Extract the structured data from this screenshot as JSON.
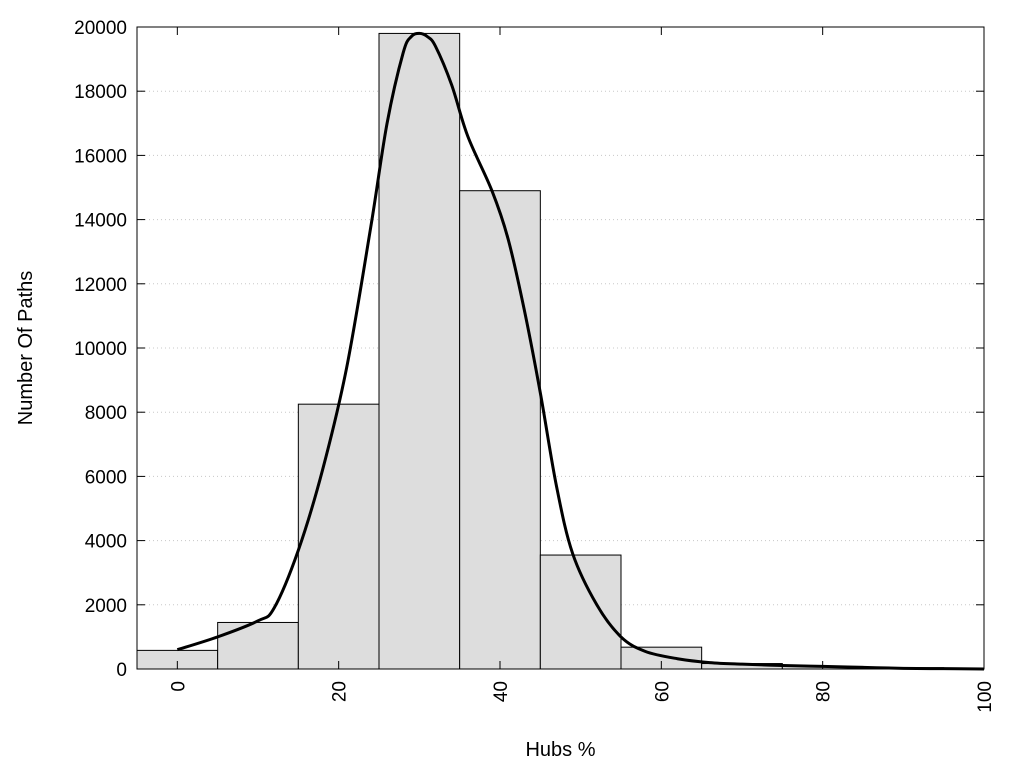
{
  "chart_data": {
    "type": "bar",
    "xlabel": "Hubs %",
    "ylabel": "Number Of Paths",
    "xlim": [
      -5,
      100
    ],
    "ylim": [
      0,
      20000
    ],
    "x_ticks": [
      0,
      20,
      40,
      60,
      80,
      100
    ],
    "x_tick_labels": [
      "0",
      "20",
      "40",
      "60",
      "80",
      "100"
    ],
    "y_ticks": [
      0,
      2000,
      4000,
      6000,
      8000,
      10000,
      12000,
      14000,
      16000,
      18000,
      20000
    ],
    "y_tick_labels": [
      "0",
      "2000",
      "4000",
      "6000",
      "8000",
      "10000",
      "12000",
      "14000",
      "16000",
      "18000",
      "20000"
    ],
    "grid": "horizontal dotted",
    "bar_width": 10,
    "bins": [
      0,
      10,
      20,
      30,
      40,
      50,
      60,
      70,
      80,
      90
    ],
    "values": [
      580,
      1450,
      8250,
      19800,
      14900,
      3550,
      680,
      170,
      80,
      40
    ],
    "bar_color": "#dddddd",
    "curve": {
      "x": [
        0,
        5,
        10,
        12,
        15,
        18,
        21,
        24,
        26,
        28,
        29,
        30,
        31,
        32,
        34,
        36,
        39,
        41,
        43,
        45,
        47,
        49,
        52,
        55,
        58,
        62,
        66,
        70,
        75,
        80,
        85,
        90,
        95,
        100
      ],
      "y": [
        600,
        1000,
        1500,
        1900,
        3700,
        6200,
        9400,
        13800,
        17000,
        19200,
        19700,
        19800,
        19700,
        19400,
        18200,
        16600,
        14900,
        13400,
        11200,
        8600,
        5700,
        3600,
        2000,
        1000,
        550,
        320,
        200,
        150,
        110,
        80,
        50,
        20,
        10,
        0
      ],
      "color": "#000000"
    }
  }
}
